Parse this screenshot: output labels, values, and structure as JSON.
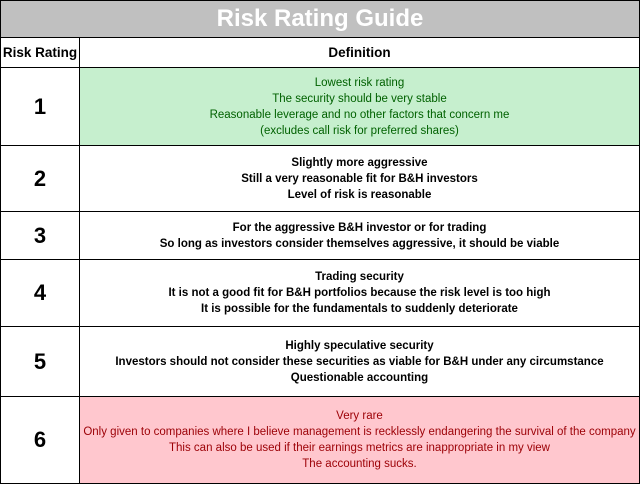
{
  "title": "Risk Rating Guide",
  "headers": {
    "rating": "Risk Rating",
    "definition": "Definition"
  },
  "rows": [
    {
      "rating": "1",
      "lines": [
        "Lowest risk rating",
        "The security should be very stable",
        "Reasonable leverage and no other factors that concern me",
        "(excludes call risk for preferred shares)"
      ]
    },
    {
      "rating": "2",
      "lines": [
        "Slightly more aggressive",
        "Still a very reasonable fit for B&H investors",
        "Level of risk is reasonable"
      ]
    },
    {
      "rating": "3",
      "lines": [
        "For the aggressive B&H investor or for trading",
        "So long as investors consider themselves aggressive, it should be viable"
      ]
    },
    {
      "rating": "4",
      "lines": [
        "Trading security",
        "It is not a good fit for B&H portfolios because the risk level is too high",
        "It is possible for the fundamentals to suddenly deteriorate"
      ]
    },
    {
      "rating": "5",
      "lines": [
        "Highly speculative security",
        "Investors should not consider these securities as viable for B&H under any circumstance",
        "Questionable accounting"
      ]
    },
    {
      "rating": "6",
      "lines": [
        "Very rare",
        "Only given to companies where I believe management is recklessly endangering the survival of the company",
        "This can also be used if their earnings metrics are inappropriate in my view",
        "The accounting sucks."
      ]
    }
  ],
  "colors": {
    "title_background": "#c0c0c0",
    "lowest_risk_fill": "#c6efce",
    "lowest_risk_text": "#006100",
    "highest_risk_fill": "#ffc7ce",
    "highest_risk_text": "#9c0006"
  }
}
